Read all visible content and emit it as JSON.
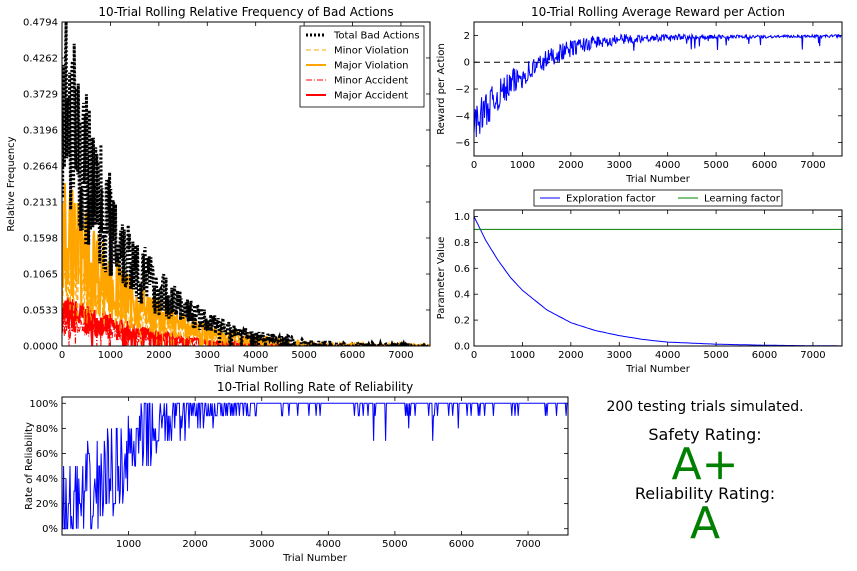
{
  "chart_data": [
    {
      "id": "bad_actions",
      "type": "line",
      "title": "10-Trial Rolling Relative Frequency of Bad Actions",
      "xlabel": "Trial Number",
      "ylabel": "Relative Frequency",
      "xlim": [
        0,
        7600
      ],
      "ylim": [
        0,
        0.4794
      ],
      "xticks": [
        "0",
        "1000",
        "2000",
        "3000",
        "4000",
        "5000",
        "6000",
        "7000"
      ],
      "yticks": [
        "0.0000",
        "0.0533",
        "0.1065",
        "0.1598",
        "0.2131",
        "0.2664",
        "0.3196",
        "0.3729",
        "0.4262",
        "0.4794"
      ],
      "legend_position": "top-right",
      "series": [
        {
          "name": "Total Bad Actions",
          "color": "#000000",
          "style": "dotted",
          "x": [
            0,
            250,
            500,
            750,
            1000,
            1250,
            1500,
            1750,
            2000,
            2500,
            3000,
            3500,
            4000,
            5000,
            6000,
            7000,
            7600
          ],
          "values": [
            0.36,
            0.31,
            0.26,
            0.22,
            0.18,
            0.15,
            0.12,
            0.1,
            0.08,
            0.055,
            0.035,
            0.025,
            0.015,
            0.008,
            0.004,
            0.002,
            0.001
          ]
        },
        {
          "name": "Minor Violation",
          "color": "#ffa500",
          "style": "dashed",
          "x": [
            0,
            500,
            1000,
            1500,
            2000,
            3000,
            4000,
            5000,
            6000,
            7600
          ],
          "values": [
            0.1,
            0.08,
            0.06,
            0.045,
            0.03,
            0.015,
            0.008,
            0.004,
            0.002,
            0.001
          ]
        },
        {
          "name": "Major Violation",
          "color": "#ffa500",
          "style": "solid",
          "x": [
            0,
            250,
            500,
            750,
            1000,
            1250,
            1500,
            2000,
            2500,
            3000,
            3500,
            4000,
            5000,
            6000,
            7000,
            7600
          ],
          "values": [
            0.17,
            0.15,
            0.13,
            0.11,
            0.09,
            0.075,
            0.06,
            0.045,
            0.03,
            0.02,
            0.015,
            0.01,
            0.005,
            0.003,
            0.002,
            0.001
          ]
        },
        {
          "name": "Minor Accident",
          "color": "#ff0000",
          "style": "dashdot",
          "x": [
            0,
            1000,
            2000,
            3000,
            4000,
            7600
          ],
          "values": [
            0.03,
            0.02,
            0.01,
            0.005,
            0.002,
            0.0005
          ]
        },
        {
          "name": "Major Accident",
          "color": "#ff0000",
          "style": "solid",
          "x": [
            0,
            500,
            1000,
            1500,
            2000,
            2500,
            3000,
            3500,
            4000,
            5000,
            7600
          ],
          "values": [
            0.05,
            0.04,
            0.03,
            0.02,
            0.015,
            0.01,
            0.006,
            0.004,
            0.002,
            0.001,
            0.0005
          ]
        }
      ]
    },
    {
      "id": "avg_reward",
      "type": "line",
      "title": "10-Trial Rolling Average Reward per Action",
      "xlabel": "Trial Number",
      "ylabel": "Reward per Action",
      "xlim": [
        0,
        7600
      ],
      "ylim": [
        -7,
        3
      ],
      "xticks": [
        "0",
        "1000",
        "2000",
        "3000",
        "4000",
        "5000",
        "6000",
        "7000"
      ],
      "yticks": [
        "−6",
        "−4",
        "−2",
        "0",
        "2"
      ],
      "reference_line": {
        "y": 0,
        "style": "dashed",
        "color": "#000000"
      },
      "series": [
        {
          "color": "#0000ff",
          "x": [
            0,
            250,
            500,
            750,
            1000,
            1250,
            1500,
            1750,
            2000,
            2250,
            2500,
            3000,
            3500,
            4000,
            5000,
            6000,
            7000,
            7600
          ],
          "values": [
            -4.5,
            -3.5,
            -2.5,
            -1.7,
            -1.0,
            -0.4,
            0.2,
            0.7,
            1.0,
            1.3,
            1.5,
            1.7,
            1.8,
            1.85,
            1.9,
            1.9,
            1.95,
            1.95
          ]
        }
      ]
    },
    {
      "id": "parameters",
      "type": "line",
      "title": "",
      "xlabel": "Trial Number",
      "ylabel": "Parameter Value",
      "xlim": [
        0,
        7600
      ],
      "ylim": [
        0,
        1.05
      ],
      "xticks": [
        "0",
        "1000",
        "2000",
        "3000",
        "4000",
        "5000",
        "6000",
        "7000"
      ],
      "yticks": [
        "0.0",
        "0.2",
        "0.4",
        "0.6",
        "0.8",
        "1.0"
      ],
      "legend_position": "top",
      "series": [
        {
          "name": "Exploration factor",
          "color": "#0000ff",
          "x": [
            0,
            250,
            500,
            750,
            1000,
            1500,
            2000,
            2500,
            3000,
            3500,
            4000,
            5000,
            6000,
            7000,
            7600
          ],
          "values": [
            1.0,
            0.81,
            0.66,
            0.53,
            0.43,
            0.28,
            0.18,
            0.12,
            0.08,
            0.05,
            0.03,
            0.014,
            0.006,
            0.002,
            0.001
          ]
        },
        {
          "name": "Learning factor",
          "color": "#008000",
          "x": [
            0,
            7600
          ],
          "values": [
            0.9,
            0.9
          ]
        }
      ]
    },
    {
      "id": "reliability",
      "type": "line",
      "title": "10-Trial Rolling Rate of Reliability",
      "xlabel": "Trial Number",
      "ylabel": "Rate of Reliability",
      "xlim": [
        0,
        7600
      ],
      "ylim": [
        -5,
        105
      ],
      "xticks": [
        "1000",
        "2000",
        "3000",
        "4000",
        "5000",
        "6000",
        "7000"
      ],
      "yticks": [
        "0%",
        "20%",
        "40%",
        "60%",
        "80%",
        "100%"
      ],
      "series": [
        {
          "color": "#0000ff",
          "x": [
            0,
            250,
            500,
            750,
            1000,
            1250,
            1500,
            1750,
            2000,
            2500,
            3000,
            3500,
            4000,
            5000,
            6000,
            7000,
            7600
          ],
          "values": [
            5,
            15,
            30,
            45,
            60,
            72,
            82,
            88,
            93,
            96,
            97,
            98,
            98,
            99,
            99,
            99,
            99
          ]
        }
      ]
    }
  ],
  "summary": {
    "trials_text": "200 testing trials simulated.",
    "safety_label": "Safety Rating:",
    "safety_grade": "A+",
    "reliability_label": "Reliability Rating:",
    "reliability_grade": "A",
    "grade_color": "#008000"
  }
}
